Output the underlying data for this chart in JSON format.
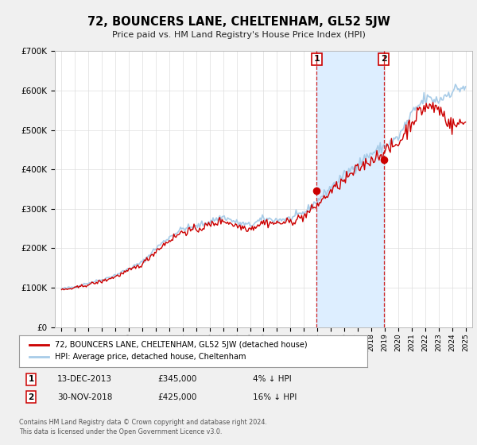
{
  "title": "72, BOUNCERS LANE, CHELTENHAM, GL52 5JW",
  "subtitle": "Price paid vs. HM Land Registry's House Price Index (HPI)",
  "background_color": "#f0f0f0",
  "plot_background": "#ffffff",
  "ylim": [
    0,
    700000
  ],
  "yticks": [
    0,
    100000,
    200000,
    300000,
    400000,
    500000,
    600000,
    700000
  ],
  "ytick_labels": [
    "£0",
    "£100K",
    "£200K",
    "£300K",
    "£400K",
    "£500K",
    "£600K",
    "£700K"
  ],
  "hpi_color": "#a8cce8",
  "price_color": "#cc0000",
  "shade_color": "#ddeeff",
  "transaction1_price": 345000,
  "transaction1_x": 2013.95,
  "transaction2_price": 425000,
  "transaction2_x": 2018.92,
  "legend_price_label": "72, BOUNCERS LANE, CHELTENHAM, GL52 5JW (detached house)",
  "legend_hpi_label": "HPI: Average price, detached house, Cheltenham",
  "footer1": "Contains HM Land Registry data © Crown copyright and database right 2024.",
  "footer2": "This data is licensed under the Open Government Licence v3.0.",
  "note1_label": "1",
  "note1_date": "13-DEC-2013",
  "note1_price": "£345,000",
  "note1_pct": "4% ↓ HPI",
  "note2_label": "2",
  "note2_date": "30-NOV-2018",
  "note2_price": "£425,000",
  "note2_pct": "16% ↓ HPI"
}
